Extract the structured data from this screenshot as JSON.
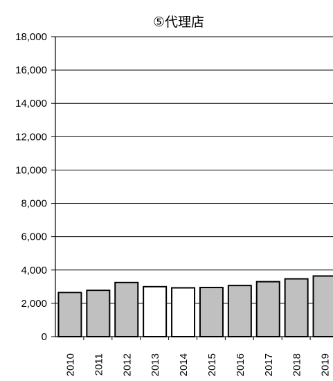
{
  "chart_data": {
    "type": "bar",
    "title": "⑤代理店",
    "categories": [
      "2010",
      "2011",
      "2012",
      "2013",
      "2014",
      "2015",
      "2016",
      "2017",
      "2018",
      "2019"
    ],
    "values": [
      2650,
      2780,
      3250,
      3000,
      2930,
      2950,
      3070,
      3300,
      3470,
      3640
    ],
    "bar_fill": [
      "#c0c0c0",
      "#c0c0c0",
      "#c0c0c0",
      "#ffffff",
      "#ffffff",
      "#c0c0c0",
      "#c0c0c0",
      "#c0c0c0",
      "#c0c0c0",
      "#c0c0c0"
    ],
    "bar_stroke": "#000000",
    "ylim": [
      0,
      18000
    ],
    "yticks": [
      0,
      2000,
      4000,
      6000,
      8000,
      10000,
      12000,
      14000,
      16000,
      18000
    ],
    "ytick_labels": [
      "0",
      "2,000",
      "4,000",
      "6,000",
      "8,000",
      "10,000",
      "12,000",
      "14,000",
      "16,000",
      "18,000"
    ],
    "grid": true,
    "xlabel": "",
    "ylabel": ""
  }
}
